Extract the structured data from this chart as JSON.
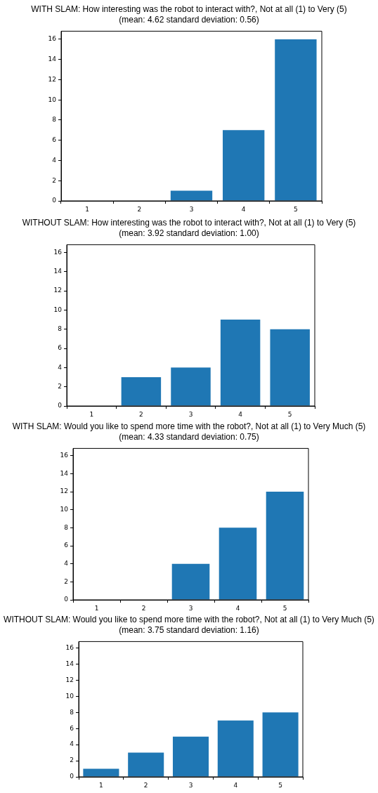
{
  "chart_data": [
    {
      "type": "bar",
      "title": "WITH SLAM: How interesting was the robot to interact with?, Not at all (1) to Very (5)",
      "subtitle": "(mean: 4.62 standard deviation: 0.56)",
      "categories": [
        "1",
        "2",
        "3",
        "4",
        "5"
      ],
      "values": [
        0,
        0,
        1,
        7,
        16
      ],
      "color": "#1f77b4",
      "ylim": [
        0,
        16.8
      ],
      "yticks": [
        0,
        2,
        4,
        6,
        8,
        10,
        12,
        14,
        16
      ],
      "grid": false
    },
    {
      "type": "bar",
      "title": "WITHOUT SLAM: How interesting was the robot to interact with?, Not at all (1) to Very (5)",
      "subtitle": "(mean: 3.92 standard deviation: 1.00)",
      "categories": [
        "1",
        "2",
        "3",
        "4",
        "5"
      ],
      "values": [
        0,
        3,
        4,
        9,
        8
      ],
      "color": "#1f77b4",
      "ylim": [
        0,
        16.8
      ],
      "yticks": [
        0,
        2,
        4,
        6,
        8,
        10,
        12,
        14,
        16
      ],
      "grid": false
    },
    {
      "type": "bar",
      "title": "WITH SLAM: Would you like to spend more time with the robot?, Not at all (1) to Very Much (5)",
      "subtitle": "(mean: 4.33 standard deviation: 0.75)",
      "categories": [
        "1",
        "2",
        "3",
        "4",
        "5"
      ],
      "values": [
        0,
        0,
        4,
        8,
        12
      ],
      "color": "#1f77b4",
      "ylim": [
        0,
        16.8
      ],
      "yticks": [
        0,
        2,
        4,
        6,
        8,
        10,
        12,
        14,
        16
      ],
      "grid": false
    },
    {
      "type": "bar",
      "title": "WITHOUT SLAM: Would you like to spend more time with the robot?, Not at all (1) to Very Much (5)",
      "subtitle": "(mean: 3.75 standard deviation: 1.16)",
      "categories": [
        "1",
        "2",
        "3",
        "4",
        "5"
      ],
      "values": [
        1,
        3,
        5,
        7,
        8
      ],
      "color": "#1f77b4",
      "ylim": [
        0,
        16.8
      ],
      "yticks": [
        0,
        2,
        4,
        6,
        8,
        10,
        12,
        14,
        16
      ],
      "grid": false
    }
  ]
}
